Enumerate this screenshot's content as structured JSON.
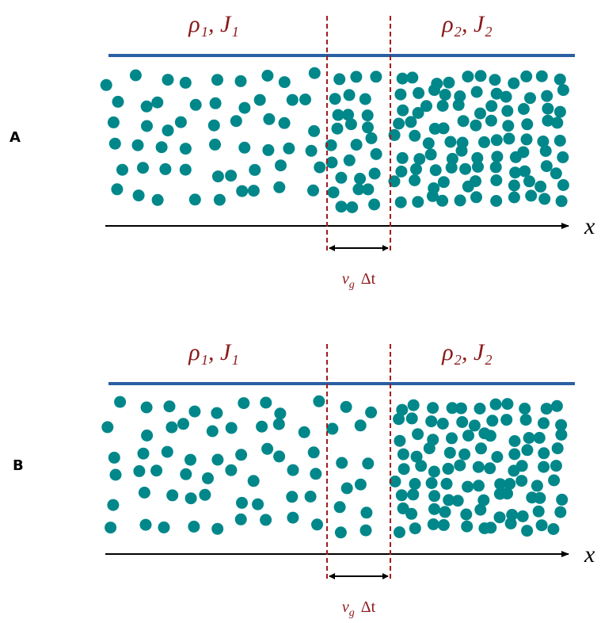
{
  "panels": [
    {
      "label": "A",
      "left_title": "ρ₁, J₁",
      "right_title": "ρ₂, J₂",
      "axis_label": "x",
      "width_label": {
        "symbol": "v",
        "sub": "g",
        "rest": "Δt"
      }
    },
    {
      "label": "B",
      "left_title": "ρ₁, J₁",
      "right_title": "ρ₂, J₂",
      "axis_label": "x",
      "width_label": {
        "symbol": "v",
        "sub": "g",
        "rest": "Δt"
      }
    }
  ]
}
